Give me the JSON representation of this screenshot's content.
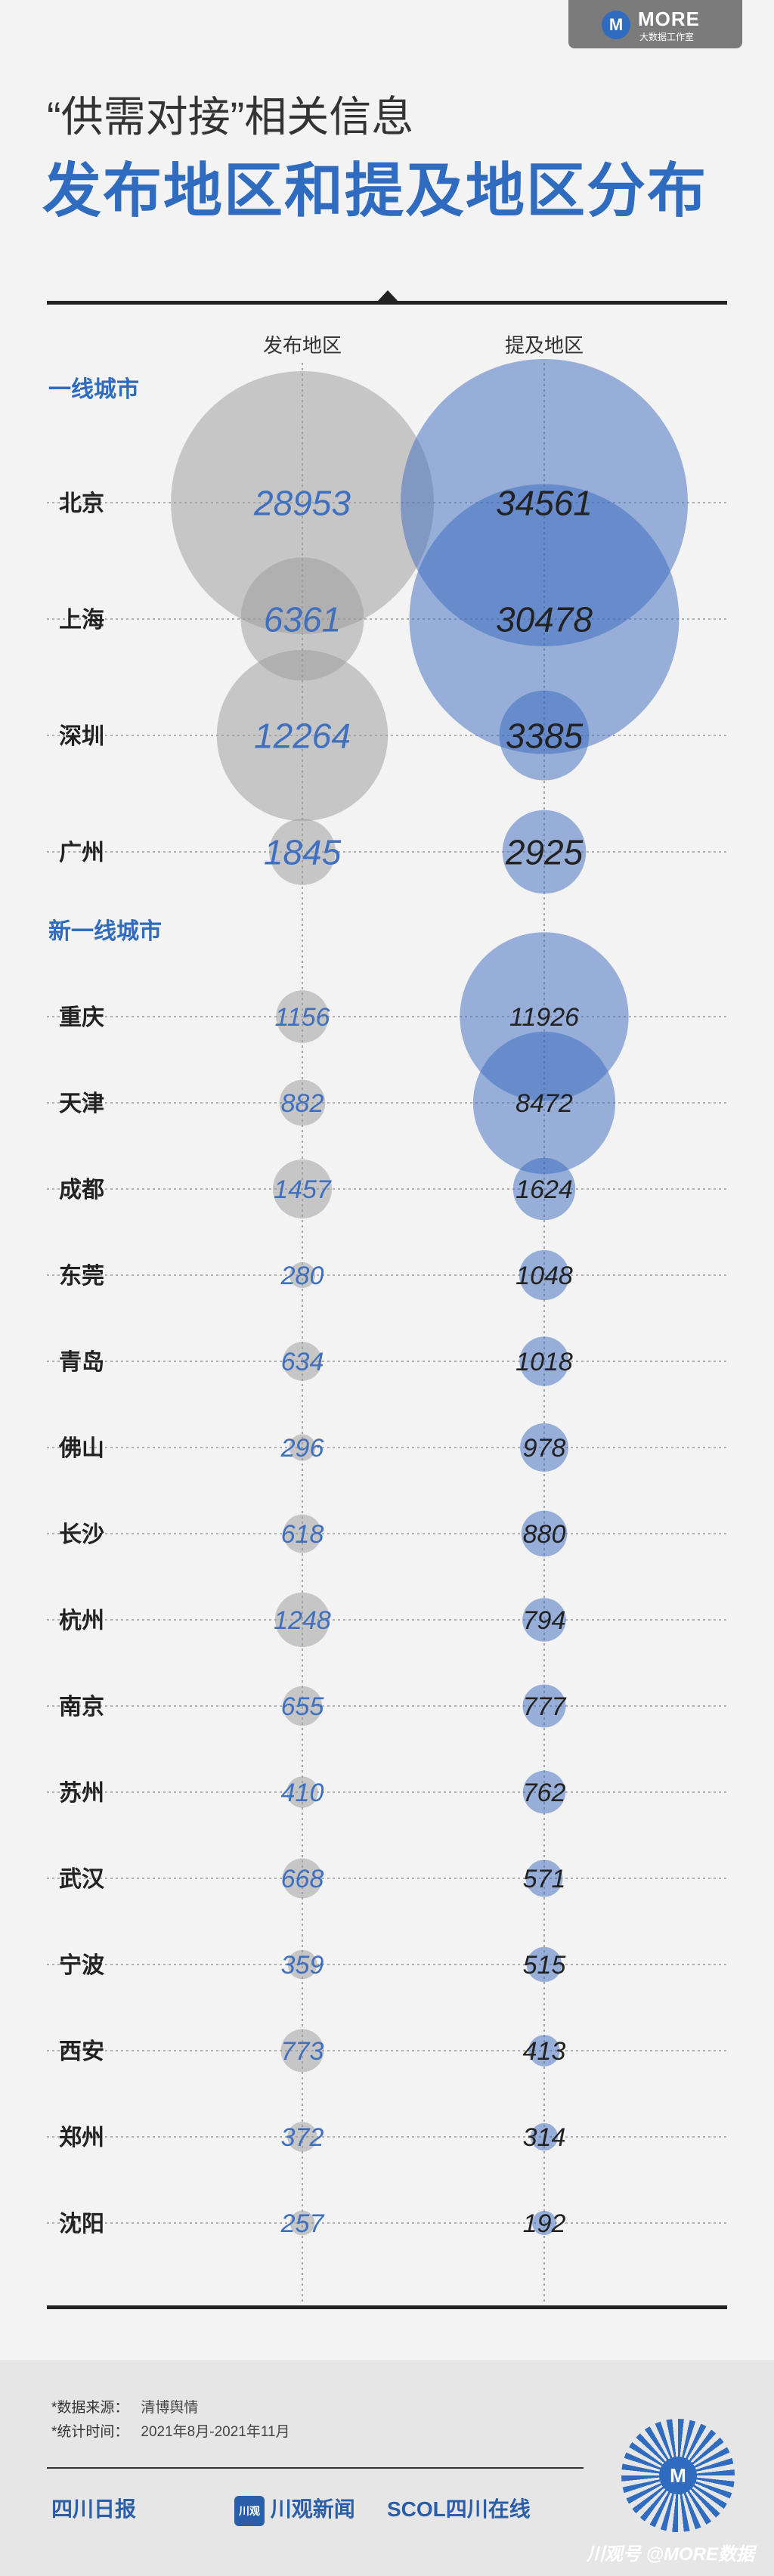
{
  "logo": {
    "mark": "M",
    "word": "MORE",
    "sub": "大数据工作室"
  },
  "header": {
    "subtitle": "“供需对接”相关信息",
    "title": "发布地区和提及地区分布"
  },
  "chart_data": {
    "type": "bubble-table",
    "columns": [
      "发布地区",
      "提及地区"
    ],
    "colors": {
      "publish": "#9a9a9a",
      "mention": "#3a69bd",
      "publish_text": "#3f6fbf",
      "mention_text": "#222222"
    },
    "groups": [
      {
        "name": "一线城市",
        "rows": [
          {
            "city": "北京",
            "publish": 28953,
            "mention": 34561
          },
          {
            "city": "上海",
            "publish": 6361,
            "mention": 30478
          },
          {
            "city": "深圳",
            "publish": 12264,
            "mention": 3385
          },
          {
            "city": "广州",
            "publish": 1845,
            "mention": 2925
          }
        ]
      },
      {
        "name": "新一线城市",
        "rows": [
          {
            "city": "重庆",
            "publish": 1156,
            "mention": 11926
          },
          {
            "city": "天津",
            "publish": 882,
            "mention": 8472
          },
          {
            "city": "成都",
            "publish": 1457,
            "mention": 1624
          },
          {
            "city": "东莞",
            "publish": 280,
            "mention": 1048
          },
          {
            "city": "青岛",
            "publish": 634,
            "mention": 1018
          },
          {
            "city": "佛山",
            "publish": 296,
            "mention": 978
          },
          {
            "city": "长沙",
            "publish": 618,
            "mention": 880
          },
          {
            "city": "杭州",
            "publish": 1248,
            "mention": 794
          },
          {
            "city": "南京",
            "publish": 655,
            "mention": 777
          },
          {
            "city": "苏州",
            "publish": 410,
            "mention": 762
          },
          {
            "city": "武汉",
            "publish": 668,
            "mention": 571
          },
          {
            "city": "宁波",
            "publish": 359,
            "mention": 515
          },
          {
            "city": "西安",
            "publish": 773,
            "mention": 413
          },
          {
            "city": "郑州",
            "publish": 372,
            "mention": 314
          },
          {
            "city": "沈阳",
            "publish": 257,
            "mention": 192
          }
        ]
      }
    ]
  },
  "footer": {
    "source_label": "*数据来源：",
    "source_value": "清博舆情",
    "period_label": "*统计时间：",
    "period_value": "2021年8月-2021年11月",
    "brands": [
      "四川日报",
      "川观新闻",
      "SCOL四川在线"
    ],
    "brand_box": "川观",
    "qr_mark": "M",
    "watermark": "川观号 @MORE数据"
  }
}
